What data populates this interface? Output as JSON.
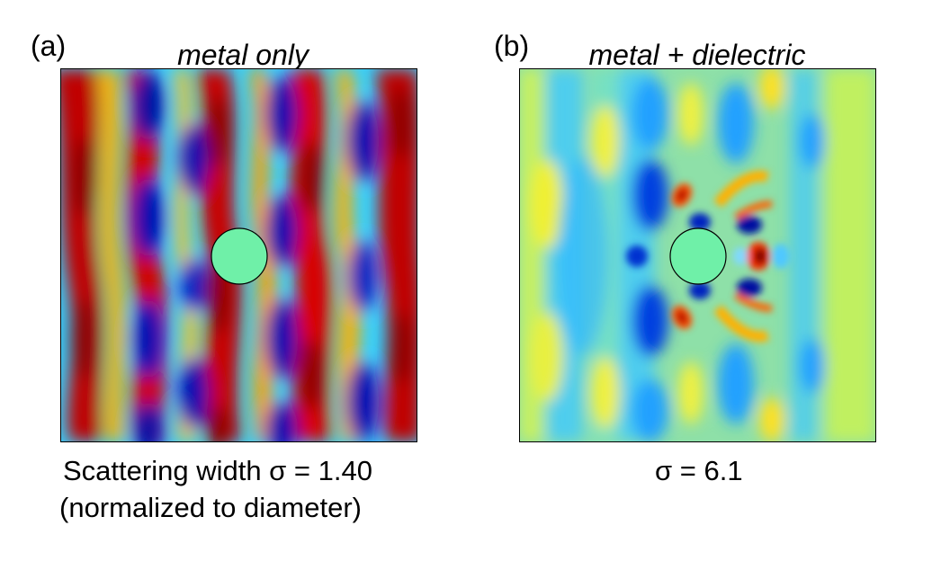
{
  "panel_a": {
    "label": "(a)",
    "title": "metal only",
    "caption_line1": "Scattering width σ = 1.40",
    "caption_line2": "(normalized to diameter)"
  },
  "panel_b": {
    "label": "(b)",
    "title": "metal + dielectric",
    "caption_line1": "σ = 6.1"
  },
  "colors": {
    "red": "#b00000",
    "orange": "#ff8c00",
    "yellow": "#f0f040",
    "green": "#7fffb0",
    "cyan": "#30c8ff",
    "blue": "#0010a0",
    "background_b": "#7ad9b8",
    "scatterer": "#6ff0a8"
  }
}
